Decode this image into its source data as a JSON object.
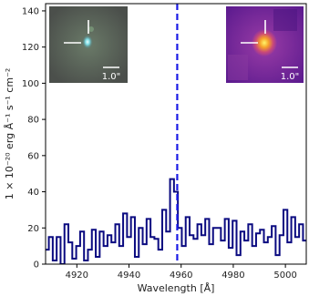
{
  "chart_data": {
    "type": "line",
    "title": "",
    "xlabel": "Wavelength [Å]",
    "ylabel": "1 × 10⁻²⁰ erg Å⁻¹ s⁻¹ cm⁻²",
    "xlim": [
      4908,
      5008
    ],
    "ylim": [
      0,
      144
    ],
    "xticks": [
      4920,
      4940,
      4960,
      4980,
      5000
    ],
    "yticks": [
      0,
      20,
      40,
      60,
      80,
      100,
      120,
      140
    ],
    "grid": false,
    "step_width": 1.5,
    "series": [
      {
        "style": "steps",
        "color": "#0a0a80",
        "x": [
          4908.5,
          4910.0,
          4911.5,
          4913.0,
          4914.5,
          4916.0,
          4917.5,
          4919.0,
          4920.5,
          4922.0,
          4923.5,
          4925.0,
          4926.5,
          4928.0,
          4929.5,
          4931.0,
          4932.5,
          4934.0,
          4935.5,
          4937.0,
          4938.5,
          4940.0,
          4941.5,
          4943.0,
          4944.5,
          4946.0,
          4947.5,
          4949.0,
          4950.5,
          4952.0,
          4953.5,
          4955.0,
          4956.5,
          4958.0,
          4959.5,
          4961.0,
          4962.5,
          4964.0,
          4965.5,
          4967.0,
          4968.5,
          4970.0,
          4971.5,
          4973.0,
          4974.5,
          4976.0,
          4977.5,
          4979.0,
          4980.5,
          4982.0,
          4983.5,
          4985.0,
          4986.5,
          4988.0,
          4989.5,
          4991.0,
          4992.5,
          4994.0,
          4995.5,
          4997.0,
          4998.5,
          5000.0,
          5001.5,
          5003.0,
          5004.5,
          5006.0,
          5007.5
        ],
        "y": [
          8,
          15,
          2,
          15,
          0,
          22,
          12,
          3,
          10,
          18,
          2,
          8,
          19,
          4,
          18,
          10,
          16,
          12,
          22,
          10,
          28,
          15,
          26,
          4,
          20,
          11,
          25,
          15,
          14,
          8,
          30,
          18,
          47,
          40,
          20,
          10,
          26,
          16,
          14,
          22,
          16,
          25,
          11,
          20,
          20,
          13,
          25,
          9,
          24,
          5,
          18,
          13,
          22,
          10,
          17,
          19,
          12,
          15,
          21,
          5,
          16,
          30,
          12,
          26,
          15,
          22,
          13
        ]
      }
    ],
    "vline": {
      "x": 4958.5,
      "color": "#1a1ae6",
      "style": "dashed"
    },
    "insets": [
      {
        "position": "top-left",
        "scale_label": "1.0\""
      },
      {
        "position": "top-right",
        "scale_label": "1.0\""
      }
    ]
  }
}
